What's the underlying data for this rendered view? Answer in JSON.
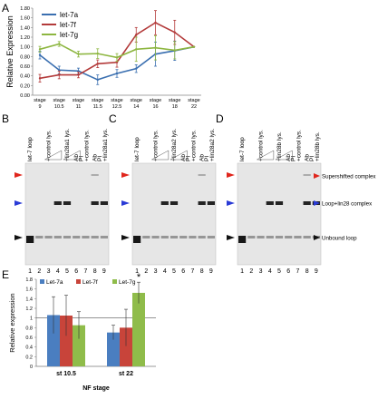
{
  "panels": {
    "A": {
      "letter": "A",
      "chart_data": {
        "type": "line",
        "ylabel": "Relative Expression",
        "ylim": [
          0,
          1.8
        ],
        "yticks": [
          "0.00",
          "0.20",
          "0.40",
          "0.60",
          "0.80",
          "1.00",
          "1.20",
          "1.40",
          "1.60",
          "1.80"
        ],
        "categories": [
          [
            "stage",
            "9"
          ],
          [
            "stage",
            "10.5"
          ],
          [
            "stage",
            "11"
          ],
          [
            "stage",
            "11.5"
          ],
          [
            "stage",
            "12.5"
          ],
          [
            "stage",
            "14"
          ],
          [
            "stage",
            "16"
          ],
          [
            "stage",
            "18"
          ],
          [
            "stage",
            "22"
          ]
        ],
        "series": [
          {
            "name": "let-7a",
            "color": "#3a6fb0",
            "values": [
              0.83,
              0.52,
              0.5,
              0.32,
              0.45,
              0.55,
              0.85,
              0.92,
              1.0
            ],
            "err": [
              0.08,
              0.08,
              0.06,
              0.1,
              0.08,
              0.08,
              0.25,
              0.2,
              0.0
            ]
          },
          {
            "name": "let-7f",
            "color": "#b33a3a",
            "values": [
              0.35,
              0.42,
              0.42,
              0.65,
              0.68,
              1.25,
              1.5,
              1.3,
              1.0
            ],
            "err": [
              0.08,
              0.08,
              0.06,
              0.08,
              0.1,
              0.15,
              0.25,
              0.25,
              0.0
            ]
          },
          {
            "name": "let-7g",
            "color": "#8db640",
            "values": [
              0.95,
              1.06,
              0.85,
              0.86,
              0.78,
              0.95,
              0.98,
              0.93,
              1.0
            ],
            "err": [
              0.06,
              0.05,
              0.06,
              0.1,
              0.08,
              0.25,
              0.25,
              0.18,
              0.0
            ]
          }
        ],
        "grid": false,
        "legend": "top-left"
      }
    },
    "B": {
      "letter": "B",
      "lanes": [
        "let-7 loop",
        "+control lys.",
        "+lin28a1 lys.",
        "Ab\nPI",
        "+control lys.",
        "Ab\nPI",
        "+lin28a1 lys."
      ],
      "numbers": [
        "1",
        "2",
        "3",
        "4",
        "5",
        "6",
        "7",
        "8",
        "9"
      ]
    },
    "C": {
      "letter": "C",
      "lanes": [
        "let-7 loop",
        "+control lys.",
        "+lin28a2 lys.",
        "Ab\nPI",
        "+control lys.",
        "Ab\nPI",
        "+lin28a2 lys."
      ],
      "numbers": [
        "1",
        "2",
        "3",
        "4",
        "5",
        "6",
        "7",
        "8",
        "9"
      ]
    },
    "D": {
      "letter": "D",
      "lanes": [
        "let-7 loop",
        "+control lys.",
        "+lin28b lys.",
        "Ab\nPI",
        "+control lys.",
        "Ab\nPI",
        "+lin28b lys."
      ],
      "numbers": [
        "1",
        "2",
        "3",
        "4",
        "5",
        "6",
        "7",
        "8",
        "9"
      ]
    },
    "key": {
      "supershifted": "Supershifted complex",
      "loop_lin28": "Loop+lin28 complex",
      "unbound": "Unbound loop",
      "colors": {
        "red": "#e0261d",
        "blue": "#2a3bd6",
        "black": "#111111"
      }
    },
    "E": {
      "letter": "E",
      "chart_data": {
        "type": "bar",
        "ylabel": "Relative expression",
        "xlabel": "NF stage",
        "categories": [
          "st 10.5",
          "st 22"
        ],
        "ylim": [
          0,
          1.8
        ],
        "yticks": [
          "0",
          "0.2",
          "0.4",
          "0.6",
          "0.8",
          "1",
          "1.2",
          "1.4",
          "1.6",
          "1.8"
        ],
        "series": [
          {
            "name": "Let-7a",
            "color": "#4a7ec0",
            "values": [
              1.06,
              0.7
            ],
            "err": [
              0.38,
              0.15
            ]
          },
          {
            "name": "Let-7f",
            "color": "#c8443a",
            "values": [
              1.05,
              0.8
            ],
            "err": [
              0.42,
              0.38
            ]
          },
          {
            "name": "Let-7g",
            "color": "#8fbc4a",
            "values": [
              0.85,
              1.52
            ],
            "err": [
              0.28,
              0.22
            ]
          }
        ],
        "annotation": "*",
        "reference_line": 1,
        "legend": "top-left"
      }
    }
  }
}
